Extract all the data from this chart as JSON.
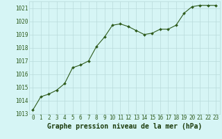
{
  "x": [
    0,
    1,
    2,
    3,
    4,
    5,
    6,
    7,
    8,
    9,
    10,
    11,
    12,
    13,
    14,
    15,
    16,
    17,
    18,
    19,
    20,
    21,
    22,
    23
  ],
  "y": [
    1013.3,
    1014.3,
    1014.5,
    1014.8,
    1015.3,
    1016.5,
    1016.7,
    1017.0,
    1018.1,
    1018.8,
    1019.7,
    1019.8,
    1019.6,
    1019.3,
    1019.0,
    1019.1,
    1019.4,
    1019.4,
    1019.7,
    1020.6,
    1021.1,
    1021.2,
    1021.2,
    1021.2
  ],
  "ylim": [
    1013,
    1021.5
  ],
  "yticks": [
    1013,
    1014,
    1015,
    1016,
    1017,
    1018,
    1019,
    1020,
    1021
  ],
  "xticks": [
    0,
    1,
    2,
    3,
    4,
    5,
    6,
    7,
    8,
    9,
    10,
    11,
    12,
    13,
    14,
    15,
    16,
    17,
    18,
    19,
    20,
    21,
    22,
    23
  ],
  "line_color": "#2d5a1b",
  "marker_color": "#2d5a1b",
  "bg_color": "#d6f5f5",
  "grid_color": "#b8dada",
  "xlabel": "Graphe pression niveau de la mer (hPa)",
  "xlabel_color": "#1a3a0a",
  "tick_label_color": "#2d5a1b",
  "tick_fontsize": 5.5,
  "xlabel_fontsize": 7.0
}
